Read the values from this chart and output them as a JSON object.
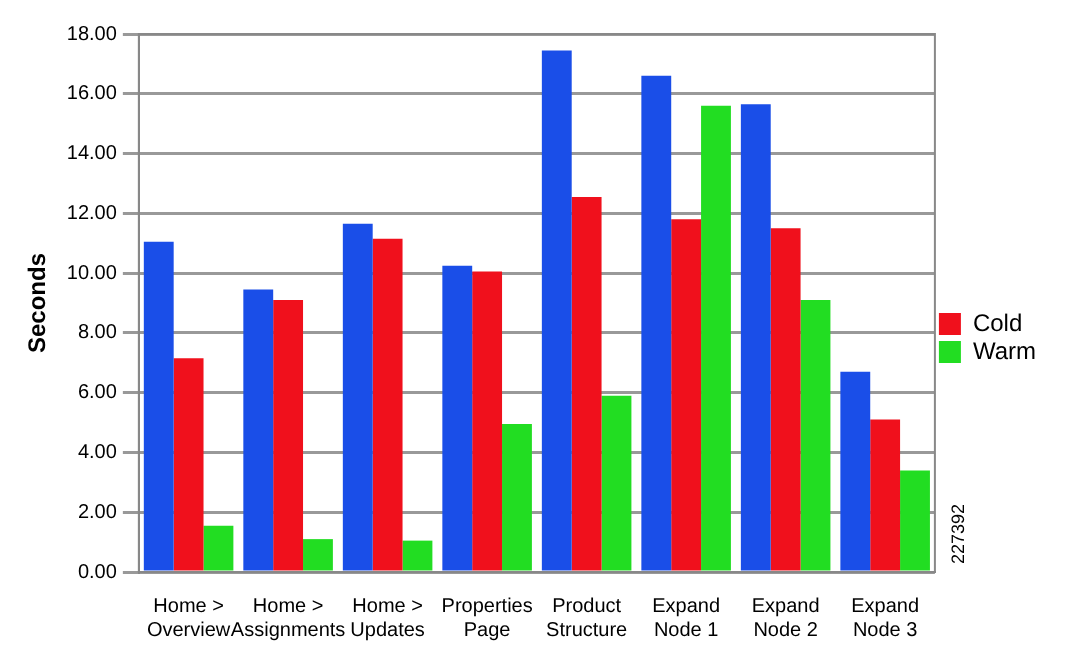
{
  "chart_data": {
    "type": "bar",
    "ylabel": "Seconds",
    "categories": [
      "Home > Overview",
      "Home > Assignments",
      "Home > Updates",
      "Properties Page",
      "Product Structure",
      "Expand Node 1",
      "Expand Node 2",
      "Expand Node 3"
    ],
    "series": [
      {
        "color": "#1a4ee8",
        "values": [
          11.05,
          9.45,
          11.65,
          10.25,
          17.45,
          16.6,
          15.65,
          6.7
        ]
      },
      {
        "name": "Cold",
        "color": "#f0101c",
        "values": [
          7.15,
          9.1,
          11.15,
          10.05,
          12.55,
          11.8,
          11.5,
          5.1
        ]
      },
      {
        "name": "Warm",
        "color": "#22dd22",
        "values": [
          1.55,
          1.1,
          1.05,
          4.95,
          5.9,
          15.6,
          9.1,
          3.4
        ]
      }
    ],
    "ylim": [
      0,
      18
    ],
    "yticks": [
      {
        "value": 0,
        "label": "0.00"
      },
      {
        "value": 2,
        "label": "2.00"
      },
      {
        "value": 4,
        "label": "4.00"
      },
      {
        "value": 6,
        "label": "6.00"
      },
      {
        "value": 8,
        "label": "8.00"
      },
      {
        "value": 10,
        "label": "10.00"
      },
      {
        "value": 12,
        "label": "12.00"
      },
      {
        "value": 14,
        "label": "14.00"
      },
      {
        "value": 16,
        "label": "16.00"
      },
      {
        "value": 18,
        "label": "18.00"
      }
    ],
    "grid": "y",
    "legend": "right",
    "annotations": [
      "227392"
    ]
  }
}
